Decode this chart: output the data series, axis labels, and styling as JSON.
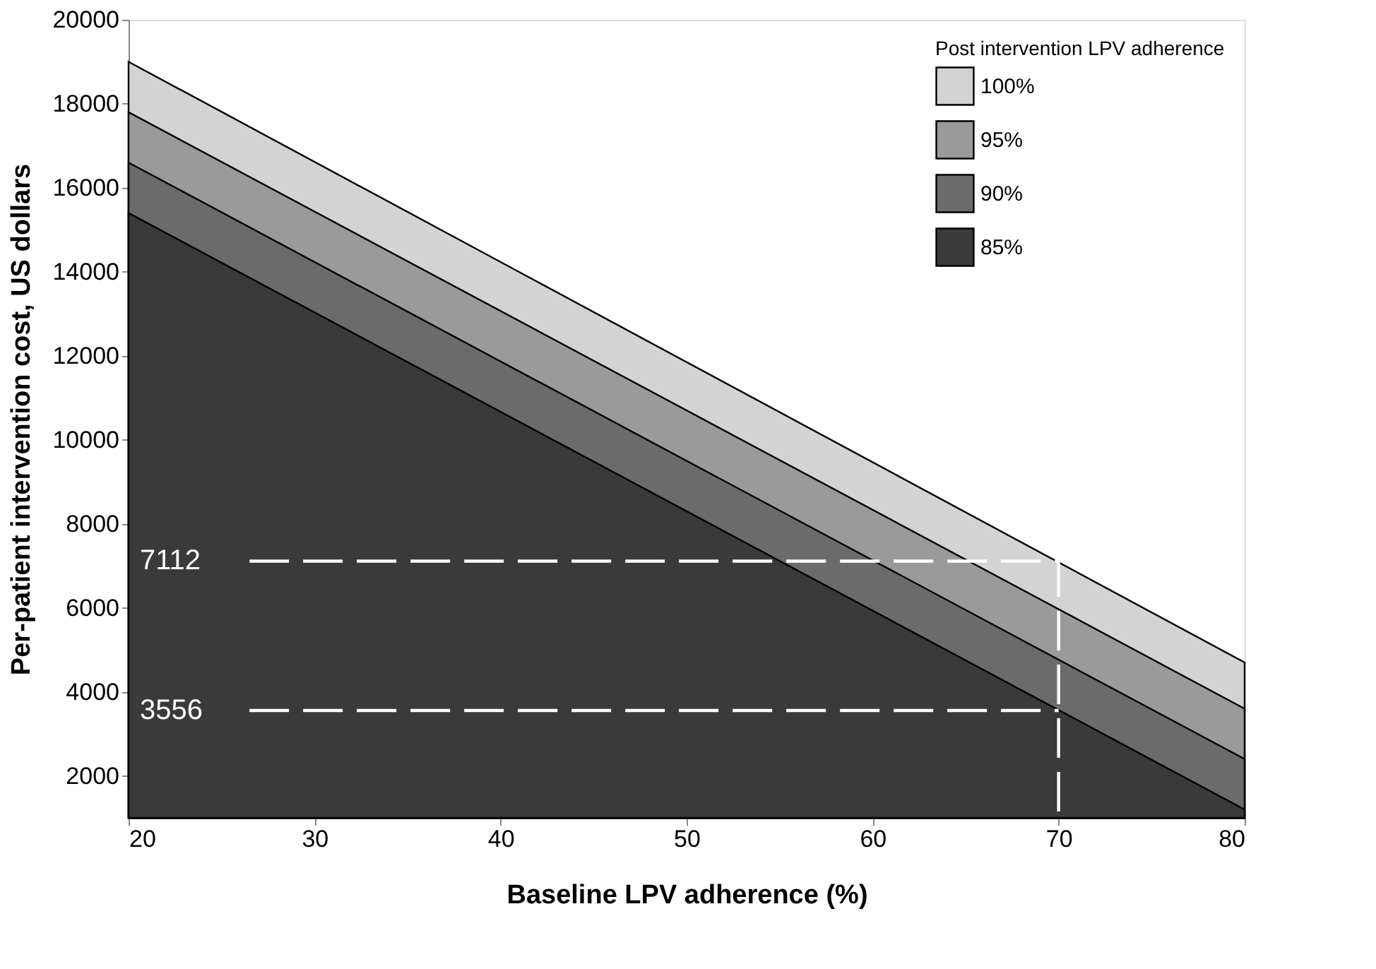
{
  "chart_data": {
    "type": "area",
    "xlabel": "Baseline LPV adherence (%)",
    "ylabel": "Per-patient intervention cost, US dollars",
    "legend_title": "Post intervention LPV adherence",
    "xlim": [
      20,
      80
    ],
    "ylim": [
      1000,
      20000
    ],
    "xticks": [
      20,
      30,
      40,
      50,
      60,
      70,
      80
    ],
    "yticks": [
      2000,
      4000,
      6000,
      8000,
      10000,
      12000,
      14000,
      16000,
      18000,
      20000
    ],
    "grid": false,
    "legend": "top right",
    "series": [
      {
        "name": "100%",
        "color": "#d3d3d3",
        "x": [
          20,
          80
        ],
        "values": [
          19000,
          4700
        ]
      },
      {
        "name": "95%",
        "color": "#9a9a9a",
        "x": [
          20,
          80
        ],
        "values": [
          17800,
          3600
        ]
      },
      {
        "name": "90%",
        "color": "#6b6b6b",
        "x": [
          20,
          80
        ],
        "values": [
          16600,
          2400
        ]
      },
      {
        "name": "85%",
        "color": "#3a3a3a",
        "x": [
          20,
          80
        ],
        "values": [
          15400,
          1200
        ]
      },
      {
        "type": "line",
        "color": "#ffffff",
        "line_style": "dashed",
        "x": [
          26.5,
          70,
          70
        ],
        "values": [
          7112,
          7112,
          1000
        ]
      },
      {
        "type": "line",
        "color": "#ffffff",
        "line_style": "dashed",
        "x": [
          26.5,
          70
        ],
        "values": [
          3556,
          3556
        ]
      }
    ],
    "annotations": [
      {
        "text": "7112",
        "x": 20,
        "y": 7112
      },
      {
        "text": "3556",
        "x": 20,
        "y": 3556
      }
    ]
  }
}
